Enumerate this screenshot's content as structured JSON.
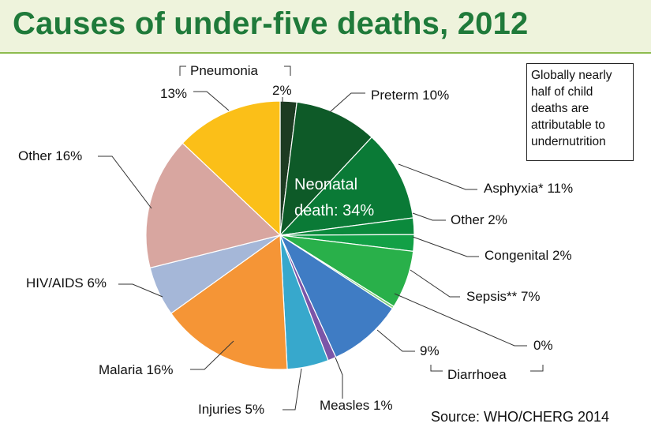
{
  "header": {
    "title": "Causes of under-five deaths, 2012"
  },
  "note": {
    "text": "Globally nearly half of child deaths are attributable to undernutrition"
  },
  "footer": {
    "source": "Source: WHO/CHERG 2014"
  },
  "chart_data": {
    "type": "pie",
    "title": "Causes of under-five deaths, 2012",
    "start": "12 o'clock",
    "direction": "clockwise",
    "slices": [
      {
        "name": "Pneumonia (neonatal)",
        "value": 2,
        "color": "#1d3b22"
      },
      {
        "name": "Preterm",
        "value": 10,
        "color": "#0e5a28"
      },
      {
        "name": "Asphyxia*",
        "value": 11,
        "color": "#0a7a36"
      },
      {
        "name": "Other (neonatal)",
        "value": 2,
        "color": "#0b8a3c"
      },
      {
        "name": "Congenital",
        "value": 2,
        "color": "#12a046"
      },
      {
        "name": "Sepsis**",
        "value": 7,
        "color": "#29b04a"
      },
      {
        "name": "Diarrhoea (neonatal)",
        "value": 0.3,
        "color": "#7fcf7a"
      },
      {
        "name": "Diarrhoea",
        "value": 9,
        "color": "#3f7cc4"
      },
      {
        "name": "Measles",
        "value": 1,
        "color": "#7b55a8"
      },
      {
        "name": "Injuries",
        "value": 5,
        "color": "#37a8cc"
      },
      {
        "name": "Malaria",
        "value": 16,
        "color": "#f59536"
      },
      {
        "name": "HIV/AIDS",
        "value": 6,
        "color": "#a5b7d8"
      },
      {
        "name": "Other",
        "value": 16,
        "color": "#d8a6a0"
      },
      {
        "name": "Pneumonia",
        "value": 13,
        "color": "#fbbf18"
      }
    ],
    "center_annotation": [
      "Neonatal",
      "death: 34%"
    ],
    "labels": [
      {
        "text": "Pneumonia"
      },
      {
        "text": "2%"
      },
      {
        "text": "13%"
      },
      {
        "text": "Preterm 10%"
      },
      {
        "text": "Asphyxia* 11%"
      },
      {
        "text": "Other 2%"
      },
      {
        "text": "Congenital 2%"
      },
      {
        "text": "Sepsis** 7%"
      },
      {
        "text": "0%"
      },
      {
        "text": "9%"
      },
      {
        "text": "Diarrhoea"
      },
      {
        "text": "Measles 1%"
      },
      {
        "text": "Injuries 5%"
      },
      {
        "text": "Malaria 16%"
      },
      {
        "text": "HIV/AIDS 6%"
      },
      {
        "text": "Other 16%"
      }
    ]
  }
}
